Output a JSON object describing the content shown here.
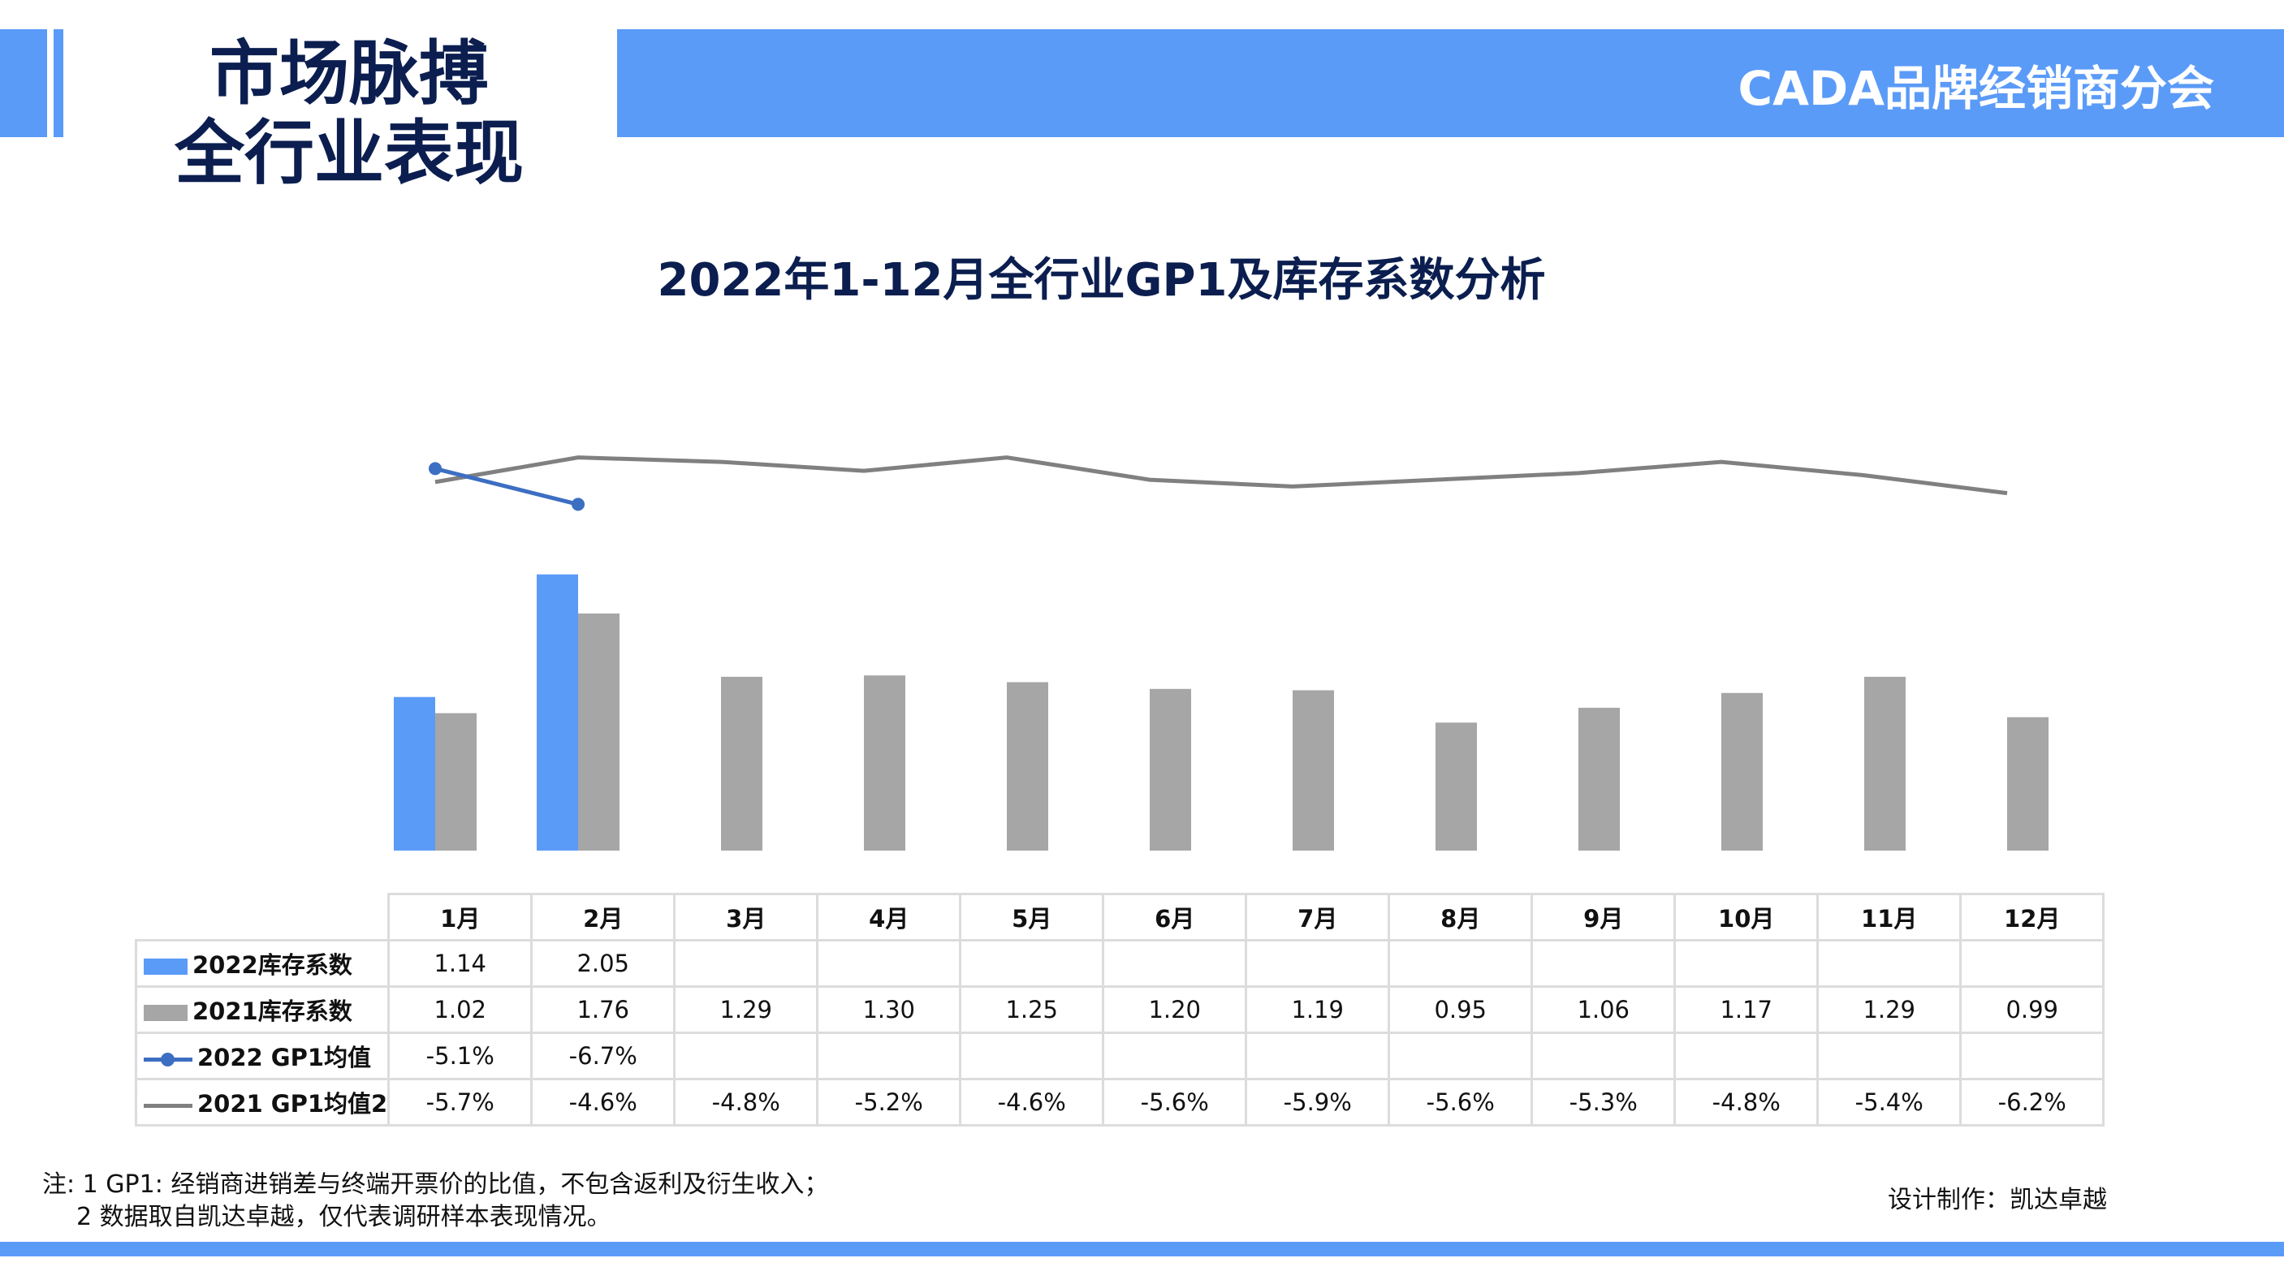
{
  "header": {
    "section_title_line1": "市场脉搏",
    "section_title_line2": "全行业表现",
    "org_name": "CADA品牌经销商分会"
  },
  "colors": {
    "accent": "#5b9bf8",
    "title_navy": "#0b1e4f",
    "bar_2022": "#5b9bf8",
    "bar_2021": "#a6a6a6",
    "line_2022": "#3c6ec2",
    "line_2021": "#808080"
  },
  "chart_data": {
    "type": "bar+line",
    "title": "2022年1-12月全行业GP1及库存系数分析",
    "categories": [
      "1月",
      "2月",
      "3月",
      "4月",
      "5月",
      "6月",
      "7月",
      "8月",
      "9月",
      "10月",
      "11月",
      "12月"
    ],
    "bar_series": [
      {
        "name": "2022库存系数",
        "values": [
          1.14,
          2.05,
          null,
          null,
          null,
          null,
          null,
          null,
          null,
          null,
          null,
          null
        ]
      },
      {
        "name": "2021库存系数",
        "values": [
          1.02,
          1.76,
          1.29,
          1.3,
          1.25,
          1.2,
          1.19,
          0.95,
          1.06,
          1.17,
          1.29,
          0.99
        ]
      }
    ],
    "line_series": [
      {
        "name": "2022 GP1均值",
        "values": [
          -5.1,
          -6.7,
          null,
          null,
          null,
          null,
          null,
          null,
          null,
          null,
          null,
          null
        ],
        "labels": [
          "-5.1%",
          "-6.7%",
          "",
          "",
          "",
          "",
          "",
          "",
          "",
          "",
          "",
          ""
        ]
      },
      {
        "name": "2021 GP1均值2",
        "values": [
          -5.7,
          -4.6,
          -4.8,
          -5.2,
          -4.6,
          -5.6,
          -5.9,
          -5.6,
          -5.3,
          -4.8,
          -5.4,
          -6.2
        ],
        "labels": [
          "-5.7%",
          "-4.6%",
          "-4.8%",
          "-5.2%",
          "-4.6%",
          "-5.6%",
          "-5.9%",
          "-5.6%",
          "-5.3%",
          "-4.8%",
          "-5.4%",
          "-6.2%"
        ]
      }
    ],
    "legend": "data-table",
    "grid": false
  },
  "footnote": {
    "line1": "注: 1  GP1: 经销商进销差与终端开票价的比值，不包含返利及衍生收入；",
    "line2": "2 数据取自凯达卓越，仅代表调研样本表现情况。"
  },
  "credit": "设计制作：凯达卓越"
}
